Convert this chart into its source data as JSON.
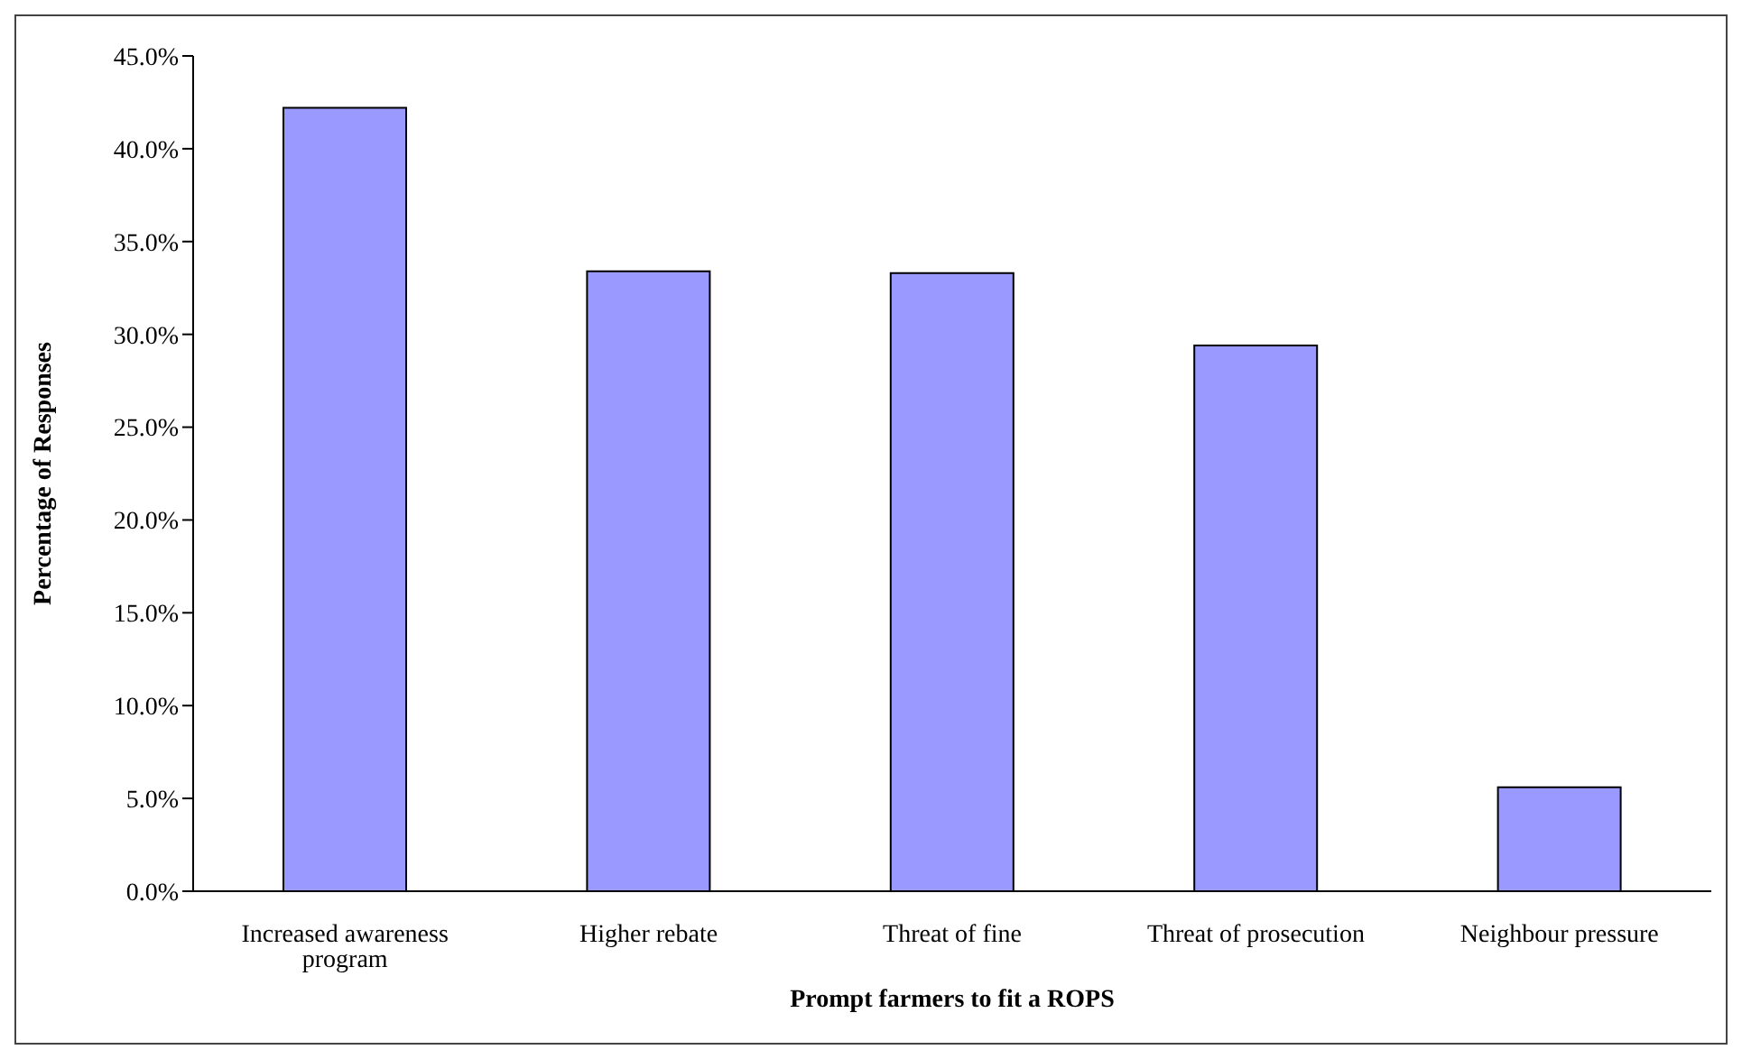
{
  "chart_data": {
    "type": "bar",
    "xlabel": "Prompt farmers to fit a ROPS",
    "ylabel": "Percentage of Responses",
    "categories": [
      "Increased awareness program",
      "Higher rebate",
      "Threat of fine",
      "Threat of prosecution",
      "Neighbour pressure"
    ],
    "values": [
      42.2,
      33.4,
      33.3,
      29.4,
      5.6
    ],
    "color": "#9999ff",
    "ylim": [
      0,
      45
    ],
    "yticks": [
      {
        "value": 0,
        "label": "0.0%"
      },
      {
        "value": 5,
        "label": "5.0%"
      },
      {
        "value": 10,
        "label": "10.0%"
      },
      {
        "value": 15,
        "label": "15.0%"
      },
      {
        "value": 20,
        "label": "20.0%"
      },
      {
        "value": 25,
        "label": "25.0%"
      },
      {
        "value": 30,
        "label": "30.0%"
      },
      {
        "value": 35,
        "label": "35.0%"
      },
      {
        "value": 40,
        "label": "40.0%"
      },
      {
        "value": 45,
        "label": "45.0%"
      }
    ],
    "grid": false,
    "legend": false
  }
}
